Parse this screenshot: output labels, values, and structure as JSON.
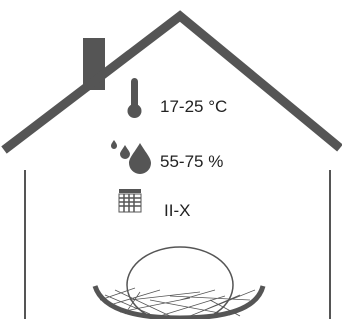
{
  "conditions": [
    {
      "icon": "thermometer",
      "label": "17-25 °C"
    },
    {
      "icon": "drops",
      "label": "55-75 %"
    },
    {
      "icon": "calendar",
      "label": "II-X"
    }
  ]
}
